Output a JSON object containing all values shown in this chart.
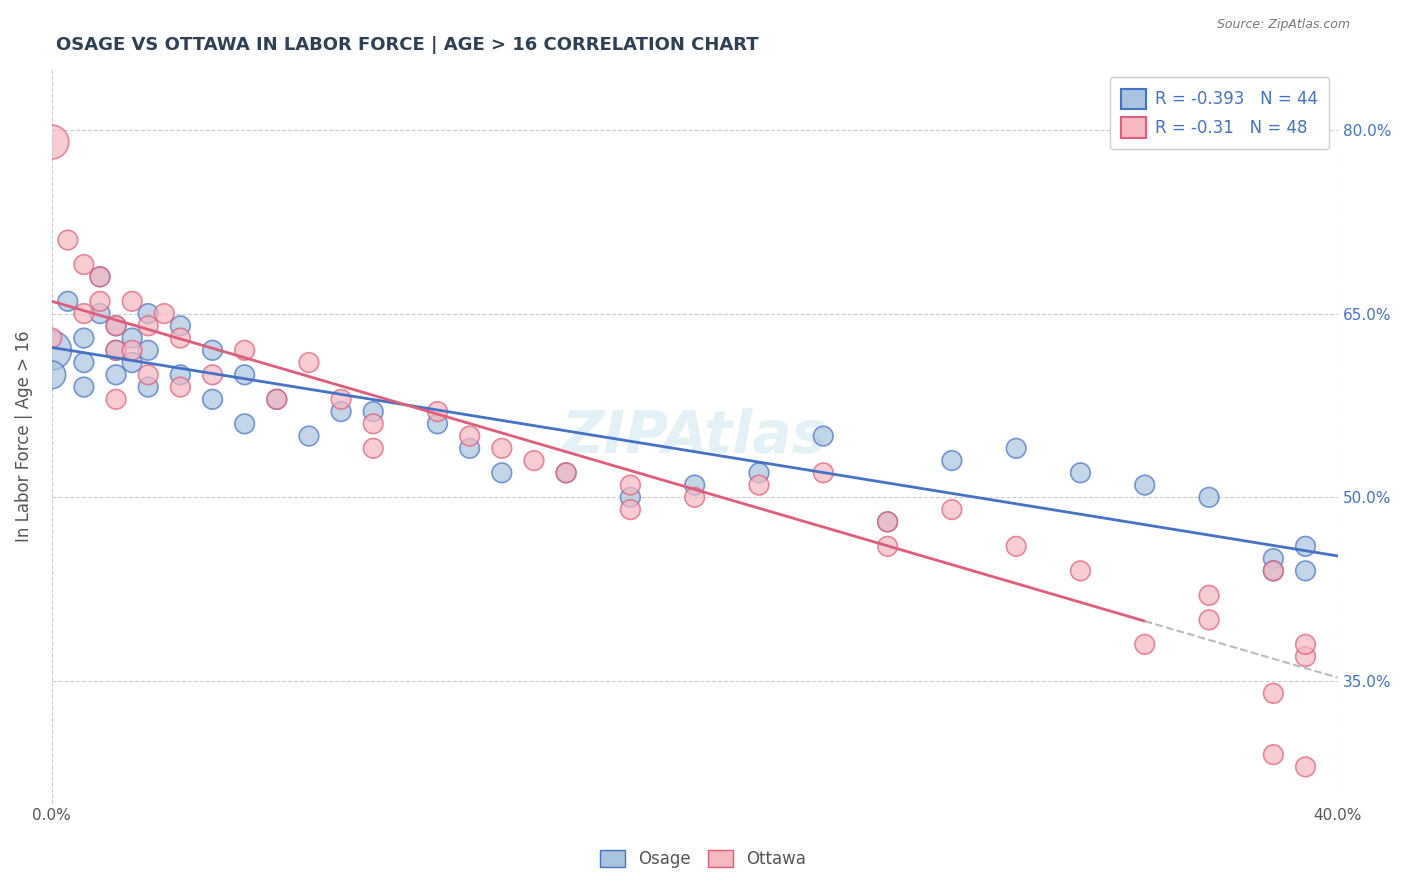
{
  "title": "OSAGE VS OTTAWA IN LABOR FORCE | AGE > 16 CORRELATION CHART",
  "source": "Source: ZipAtlas.com",
  "xlabel": "",
  "ylabel": "In Labor Force | Age > 16",
  "xlim": [
    0.0,
    0.4
  ],
  "ylim": [
    0.25,
    0.85
  ],
  "x_tick_labels": [
    "0.0%",
    "40.0%"
  ],
  "y_tick_labels": [
    "80.0%",
    "65.0%",
    "50.0%",
    "35.0%"
  ],
  "y_tick_positions": [
    0.8,
    0.65,
    0.5,
    0.35
  ],
  "osage_color": "#a8c4e0",
  "ottawa_color": "#f4b8c1",
  "osage_line_color": "#4472c4",
  "ottawa_line_color": "#e05c7a",
  "osage_R": -0.393,
  "osage_N": 44,
  "ottawa_R": -0.31,
  "ottawa_N": 48,
  "legend_labels": [
    "Osage",
    "Ottawa"
  ],
  "watermark": "ZIPAtlas",
  "background_color": "#ffffff",
  "grid_color": "#cccccc",
  "title_color": "#2e4053",
  "axis_color": "#555555",
  "legend_text_color": "#4472c4",
  "osage_scatter": {
    "x": [
      0.0,
      0.0,
      0.005,
      0.01,
      0.01,
      0.01,
      0.015,
      0.015,
      0.02,
      0.02,
      0.02,
      0.025,
      0.025,
      0.03,
      0.03,
      0.03,
      0.04,
      0.04,
      0.05,
      0.05,
      0.06,
      0.06,
      0.07,
      0.08,
      0.09,
      0.1,
      0.12,
      0.13,
      0.14,
      0.16,
      0.18,
      0.2,
      0.22,
      0.24,
      0.26,
      0.28,
      0.3,
      0.32,
      0.34,
      0.36,
      0.38,
      0.38,
      0.39,
      0.39
    ],
    "y": [
      0.62,
      0.6,
      0.66,
      0.63,
      0.61,
      0.59,
      0.68,
      0.65,
      0.64,
      0.62,
      0.6,
      0.63,
      0.61,
      0.65,
      0.62,
      0.59,
      0.64,
      0.6,
      0.62,
      0.58,
      0.6,
      0.56,
      0.58,
      0.55,
      0.57,
      0.57,
      0.56,
      0.54,
      0.52,
      0.52,
      0.5,
      0.51,
      0.52,
      0.55,
      0.48,
      0.53,
      0.54,
      0.52,
      0.51,
      0.5,
      0.45,
      0.44,
      0.46,
      0.44
    ]
  },
  "ottawa_scatter": {
    "x": [
      0.0,
      0.0,
      0.005,
      0.01,
      0.01,
      0.015,
      0.015,
      0.02,
      0.02,
      0.02,
      0.025,
      0.025,
      0.03,
      0.03,
      0.035,
      0.04,
      0.04,
      0.05,
      0.06,
      0.07,
      0.08,
      0.09,
      0.1,
      0.1,
      0.12,
      0.13,
      0.14,
      0.15,
      0.16,
      0.18,
      0.18,
      0.2,
      0.22,
      0.24,
      0.26,
      0.26,
      0.28,
      0.3,
      0.32,
      0.34,
      0.36,
      0.36,
      0.38,
      0.38,
      0.38,
      0.39,
      0.39,
      0.39
    ],
    "y": [
      0.79,
      0.63,
      0.71,
      0.69,
      0.65,
      0.68,
      0.66,
      0.64,
      0.62,
      0.58,
      0.66,
      0.62,
      0.64,
      0.6,
      0.65,
      0.63,
      0.59,
      0.6,
      0.62,
      0.58,
      0.61,
      0.58,
      0.56,
      0.54,
      0.57,
      0.55,
      0.54,
      0.53,
      0.52,
      0.51,
      0.49,
      0.5,
      0.51,
      0.52,
      0.48,
      0.46,
      0.49,
      0.46,
      0.44,
      0.38,
      0.42,
      0.4,
      0.34,
      0.29,
      0.44,
      0.37,
      0.28,
      0.38
    ]
  }
}
